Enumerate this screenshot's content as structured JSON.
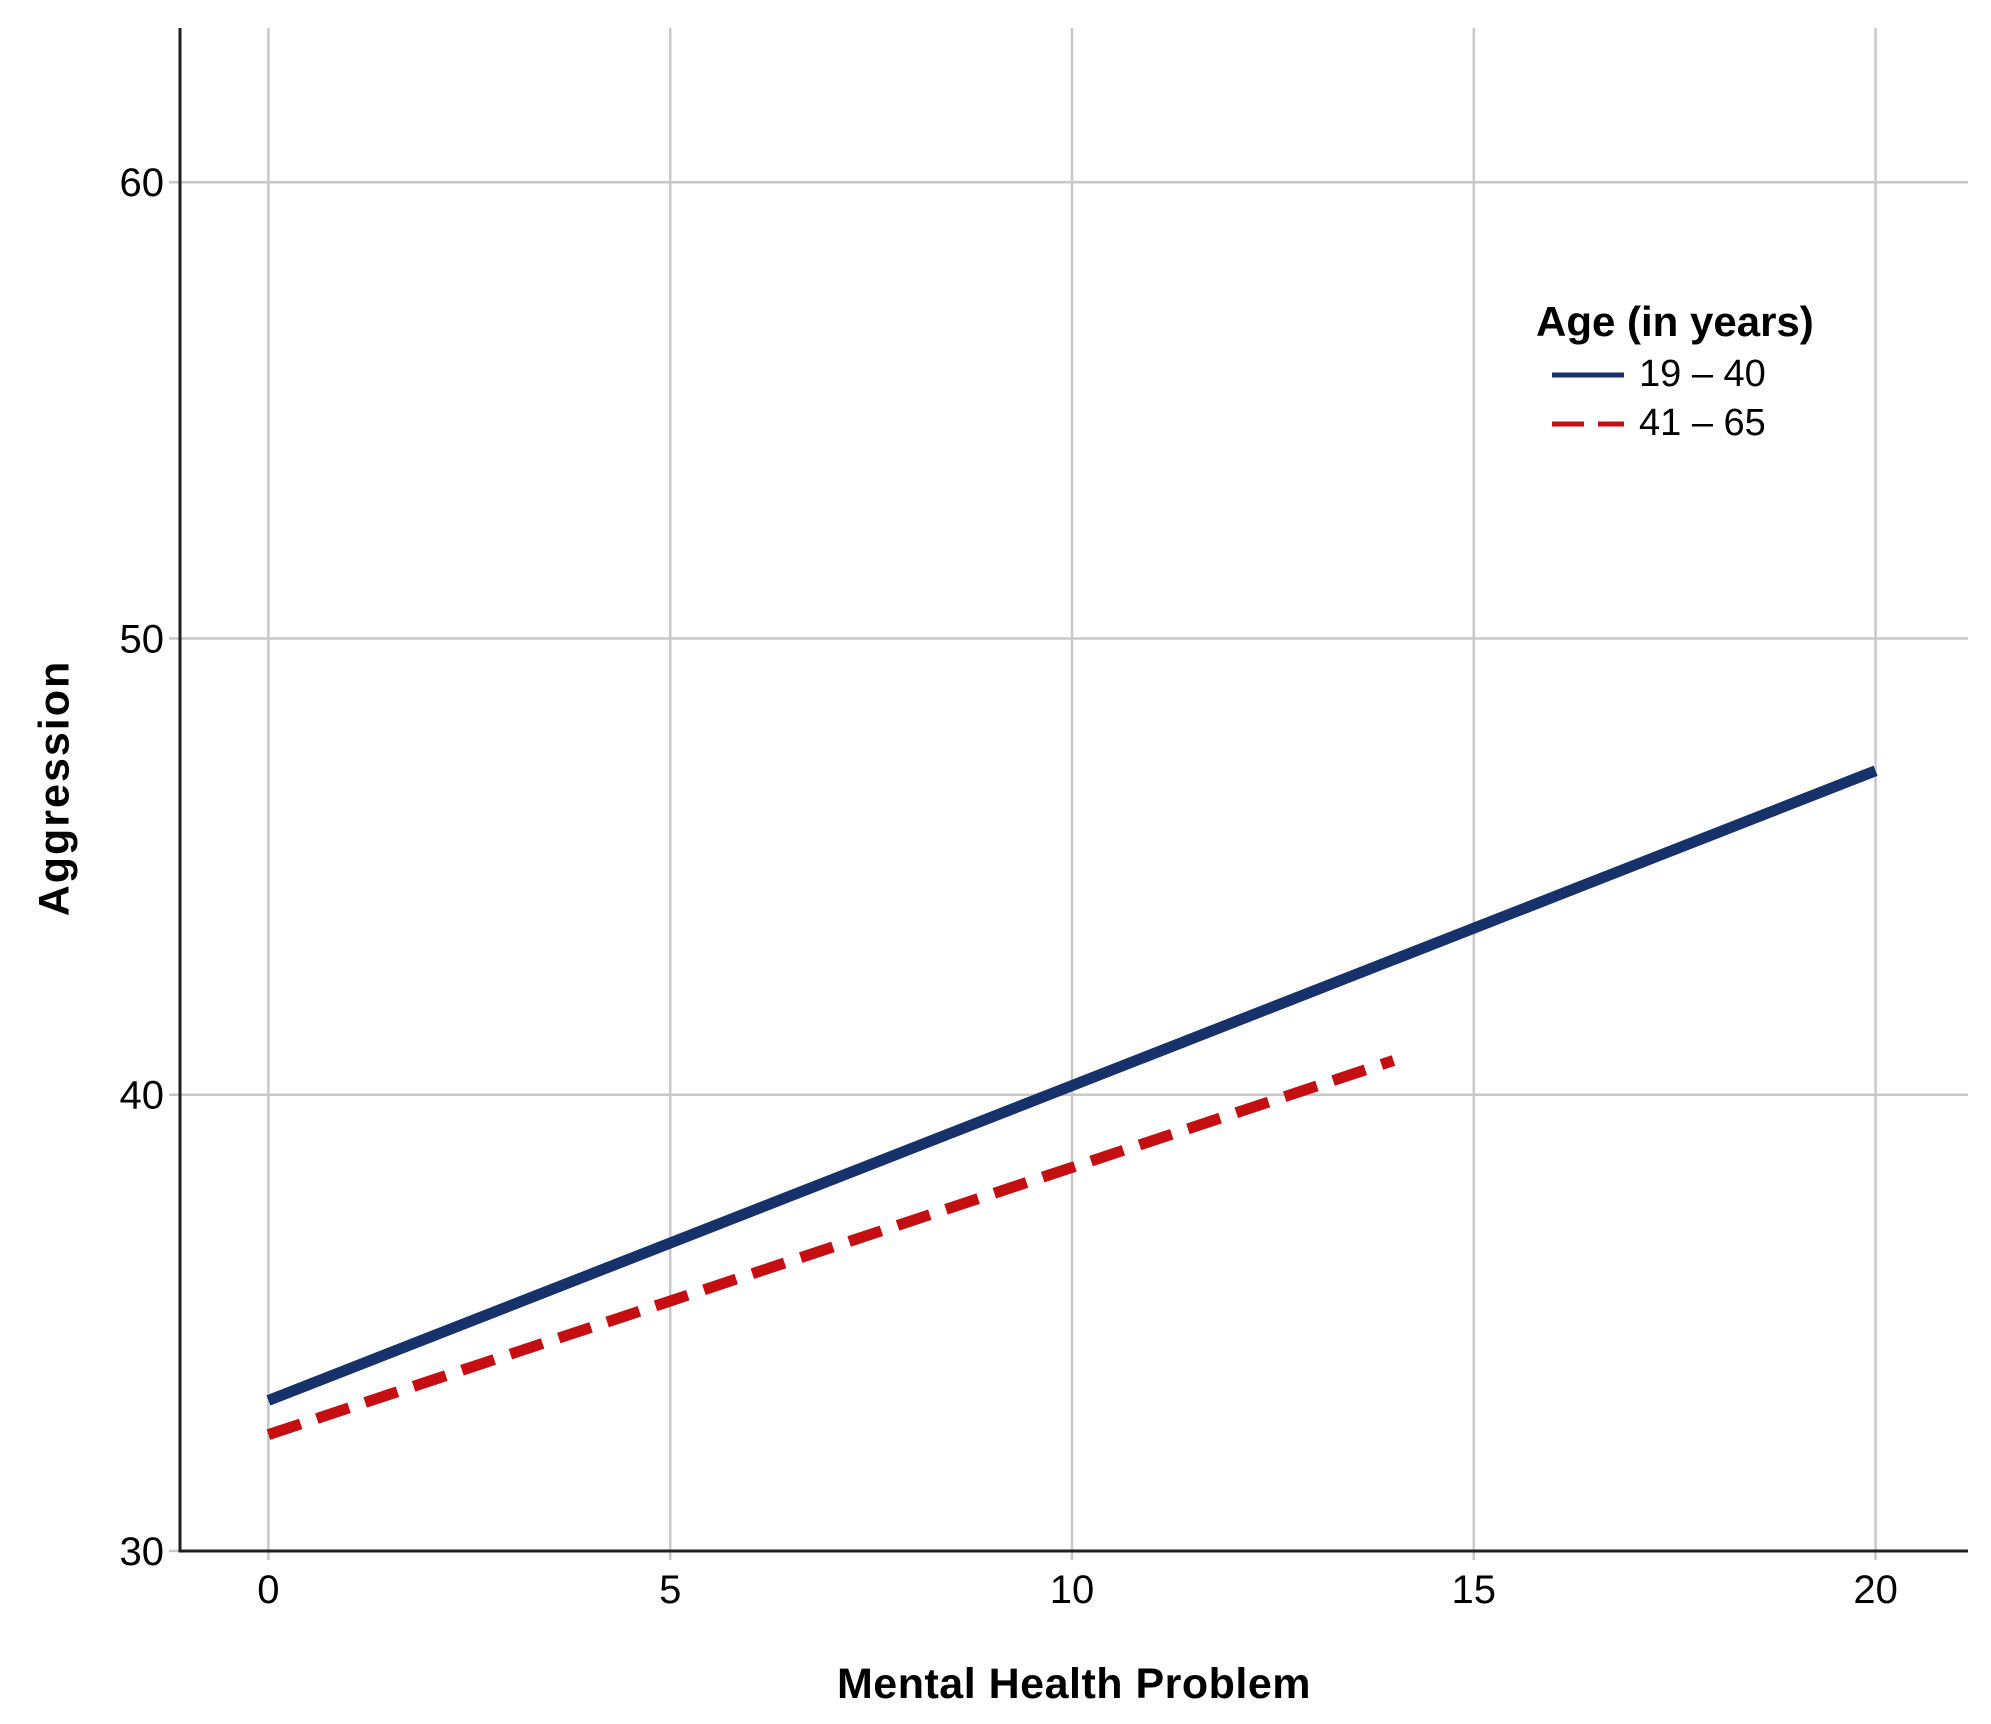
{
  "chart_data": {
    "type": "line",
    "title": "",
    "xlabel": "Mental Health Problem",
    "ylabel": "Aggression",
    "xlim": [
      -1.1,
      21.15
    ],
    "ylim": [
      30,
      63.38
    ],
    "xticks": [
      0,
      5,
      10,
      15,
      20
    ],
    "yticks": [
      30,
      40,
      50,
      60
    ],
    "grid": true,
    "legend": {
      "title": "Age (in years)",
      "position": "upper-right"
    },
    "series": [
      {
        "name": "19 – 40",
        "color": "#17316b",
        "style": "solid",
        "x": [
          0,
          20
        ],
        "y": [
          33.3,
          47.1
        ]
      },
      {
        "name": "41 – 65",
        "color": "#c40e12",
        "style": "dashed",
        "x": [
          0,
          14
        ],
        "y": [
          32.55,
          40.75
        ]
      }
    ]
  },
  "colors": {
    "background": "#ffffff",
    "axis": "#1f1f1f",
    "grid": "#c8c8c8",
    "text": "#000000"
  }
}
